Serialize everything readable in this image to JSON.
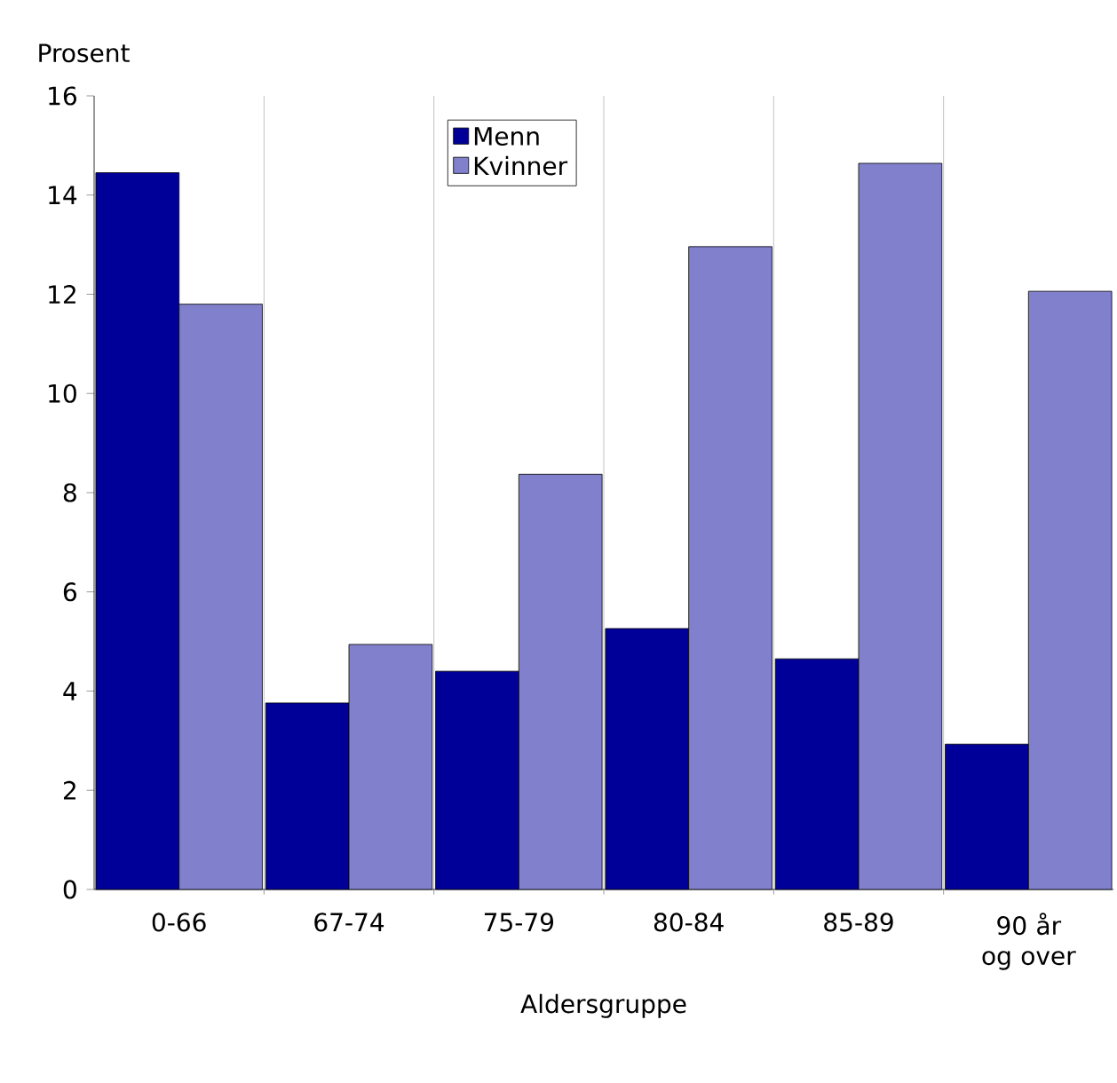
{
  "chart_data": {
    "type": "bar",
    "xlabel": "Aldersgruppe",
    "ylabel": "Prosent",
    "categories": [
      "0-66",
      "67-74",
      "75-79",
      "80-84",
      "85-89",
      "90 år og over"
    ],
    "series": [
      {
        "name": "Menn",
        "color": "#000099",
        "values": [
          14.45,
          3.76,
          4.4,
          5.26,
          4.65,
          2.93
        ]
      },
      {
        "name": "Kvinner",
        "color": "#8080cc",
        "values": [
          11.8,
          4.94,
          8.37,
          12.96,
          14.64,
          12.06
        ]
      }
    ],
    "ylim": [
      0,
      16
    ],
    "yticks": [
      0,
      2,
      4,
      6,
      8,
      10,
      12,
      14,
      16
    ],
    "grid": "x",
    "legend": "top"
  }
}
